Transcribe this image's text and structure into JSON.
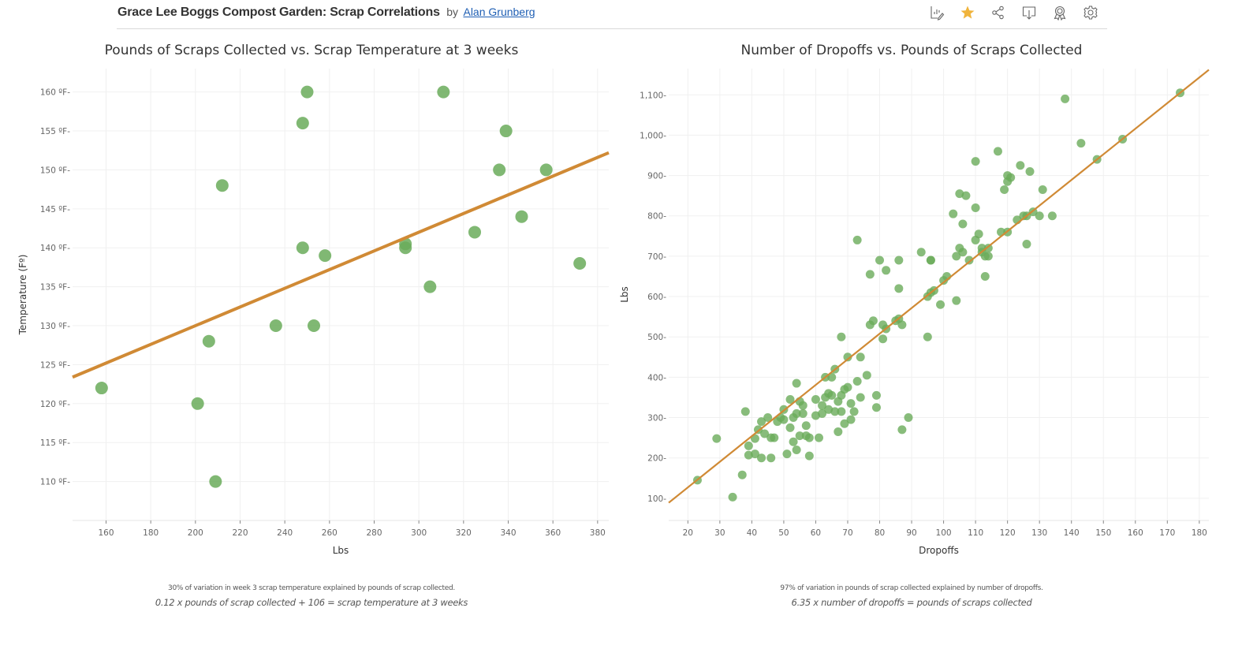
{
  "header": {
    "title": "Grace Lee Boggs Compost Garden: Scrap Correlations",
    "by": "by",
    "author": "Alan Grunberg",
    "toolbar": [
      {
        "name": "edit-icon",
        "label": "Edit"
      },
      {
        "name": "favorite-star-icon",
        "label": "Favorite"
      },
      {
        "name": "share-icon",
        "label": "Share"
      },
      {
        "name": "download-icon",
        "label": "Download"
      },
      {
        "name": "badge-icon",
        "label": "Featured"
      },
      {
        "name": "settings-gear-icon",
        "label": "Settings"
      }
    ]
  },
  "colors": {
    "point": "#6aab5a",
    "trendline": "#d08a35",
    "grid": "#f0f0f0",
    "star": "#f0b43c"
  },
  "chart_data": [
    {
      "type": "scatter",
      "title": "Pounds of Scraps Collected vs. Scrap Temperature at 3 weeks",
      "xlabel": "Lbs",
      "ylabel": "Temperature (Fº)",
      "xlim": [
        145,
        385
      ],
      "ylim": [
        105,
        163
      ],
      "xticks": [
        160,
        180,
        200,
        220,
        240,
        260,
        280,
        300,
        320,
        340,
        360,
        380
      ],
      "xtick_labels": [
        "160",
        "180",
        "200",
        "220",
        "240",
        "260",
        "280",
        "300",
        "320",
        "340",
        "360",
        "380"
      ],
      "yticks": [
        110,
        115,
        120,
        125,
        130,
        135,
        140,
        145,
        150,
        155,
        160
      ],
      "ytick_labels": [
        "110 ºF",
        "115 ºF",
        "120 ºF",
        "125 ºF",
        "130 ºF",
        "135 ºF",
        "140 ºF",
        "145 ºF",
        "150 ºF",
        "155 ºF",
        "160 ºF"
      ],
      "grid": true,
      "points": [
        {
          "x": 158,
          "y": 122
        },
        {
          "x": 201,
          "y": 120
        },
        {
          "x": 206,
          "y": 128
        },
        {
          "x": 209,
          "y": 110
        },
        {
          "x": 212,
          "y": 148
        },
        {
          "x": 236,
          "y": 130
        },
        {
          "x": 248,
          "y": 140
        },
        {
          "x": 248,
          "y": 156
        },
        {
          "x": 250,
          "y": 160
        },
        {
          "x": 253,
          "y": 130
        },
        {
          "x": 258,
          "y": 139
        },
        {
          "x": 294,
          "y": 140.5
        },
        {
          "x": 294,
          "y": 140
        },
        {
          "x": 305,
          "y": 135
        },
        {
          "x": 311,
          "y": 160
        },
        {
          "x": 325,
          "y": 142
        },
        {
          "x": 336,
          "y": 150
        },
        {
          "x": 339,
          "y": 155
        },
        {
          "x": 346,
          "y": 144
        },
        {
          "x": 357,
          "y": 150
        },
        {
          "x": 372,
          "y": 138
        }
      ],
      "trendline": {
        "slope": 0.12,
        "intercept": 106,
        "x_range": [
          145,
          385
        ]
      },
      "caption": "30% of variation in week 3 scrap temperature explained by pounds of scrap collected.",
      "equation": "0.12 x pounds of scrap collected + 106 = scrap temperature at 3 weeks"
    },
    {
      "type": "scatter",
      "title": "Number of Dropoffs vs. Pounds of Scraps Collected",
      "xlabel": "Dropoffs",
      "ylabel": "Lbs",
      "xlim": [
        14,
        183
      ],
      "ylim": [
        45,
        1165
      ],
      "xticks": [
        20,
        30,
        40,
        50,
        60,
        70,
        80,
        90,
        100,
        110,
        120,
        130,
        140,
        150,
        160,
        170,
        180
      ],
      "xtick_labels": [
        "20",
        "30",
        "40",
        "50",
        "60",
        "70",
        "80",
        "90",
        "100",
        "110",
        "120",
        "130",
        "140",
        "150",
        "160",
        "170",
        "180"
      ],
      "yticks": [
        100,
        200,
        300,
        400,
        500,
        600,
        700,
        800,
        900,
        1000,
        1100
      ],
      "ytick_labels": [
        "100",
        "200",
        "300",
        "400",
        "500",
        "600",
        "700",
        "800",
        "900",
        "1,000",
        "1,100"
      ],
      "grid": true,
      "points": [
        {
          "x": 23,
          "y": 145
        },
        {
          "x": 29,
          "y": 248
        },
        {
          "x": 34,
          "y": 103
        },
        {
          "x": 37,
          "y": 158
        },
        {
          "x": 38,
          "y": 315
        },
        {
          "x": 39,
          "y": 230
        },
        {
          "x": 39,
          "y": 207
        },
        {
          "x": 41,
          "y": 210
        },
        {
          "x": 41,
          "y": 248
        },
        {
          "x": 42,
          "y": 270
        },
        {
          "x": 43,
          "y": 290
        },
        {
          "x": 43,
          "y": 200
        },
        {
          "x": 44,
          "y": 260
        },
        {
          "x": 45,
          "y": 300
        },
        {
          "x": 46,
          "y": 200
        },
        {
          "x": 46,
          "y": 250
        },
        {
          "x": 47,
          "y": 250
        },
        {
          "x": 48,
          "y": 290
        },
        {
          "x": 49,
          "y": 300
        },
        {
          "x": 50,
          "y": 320
        },
        {
          "x": 50,
          "y": 295
        },
        {
          "x": 51,
          "y": 210
        },
        {
          "x": 52,
          "y": 345
        },
        {
          "x": 52,
          "y": 275
        },
        {
          "x": 53,
          "y": 240
        },
        {
          "x": 53,
          "y": 300
        },
        {
          "x": 54,
          "y": 310
        },
        {
          "x": 54,
          "y": 385
        },
        {
          "x": 54,
          "y": 220
        },
        {
          "x": 55,
          "y": 340
        },
        {
          "x": 55,
          "y": 255
        },
        {
          "x": 56,
          "y": 330
        },
        {
          "x": 56,
          "y": 310
        },
        {
          "x": 57,
          "y": 255
        },
        {
          "x": 57,
          "y": 280
        },
        {
          "x": 58,
          "y": 250
        },
        {
          "x": 58,
          "y": 205
        },
        {
          "x": 60,
          "y": 345
        },
        {
          "x": 60,
          "y": 305
        },
        {
          "x": 61,
          "y": 250
        },
        {
          "x": 62,
          "y": 330
        },
        {
          "x": 62,
          "y": 310
        },
        {
          "x": 63,
          "y": 400
        },
        {
          "x": 63,
          "y": 350
        },
        {
          "x": 64,
          "y": 320
        },
        {
          "x": 64,
          "y": 360
        },
        {
          "x": 65,
          "y": 400
        },
        {
          "x": 65,
          "y": 355
        },
        {
          "x": 66,
          "y": 315
        },
        {
          "x": 66,
          "y": 420
        },
        {
          "x": 67,
          "y": 340
        },
        {
          "x": 67,
          "y": 265
        },
        {
          "x": 68,
          "y": 355
        },
        {
          "x": 68,
          "y": 500
        },
        {
          "x": 68,
          "y": 315
        },
        {
          "x": 69,
          "y": 370
        },
        {
          "x": 69,
          "y": 285
        },
        {
          "x": 70,
          "y": 375
        },
        {
          "x": 70,
          "y": 450
        },
        {
          "x": 71,
          "y": 335
        },
        {
          "x": 71,
          "y": 295
        },
        {
          "x": 72,
          "y": 315
        },
        {
          "x": 73,
          "y": 390
        },
        {
          "x": 73,
          "y": 740
        },
        {
          "x": 74,
          "y": 350
        },
        {
          "x": 74,
          "y": 450
        },
        {
          "x": 76,
          "y": 405
        },
        {
          "x": 77,
          "y": 655
        },
        {
          "x": 77,
          "y": 530
        },
        {
          "x": 78,
          "y": 540
        },
        {
          "x": 79,
          "y": 355
        },
        {
          "x": 79,
          "y": 325
        },
        {
          "x": 80,
          "y": 690
        },
        {
          "x": 81,
          "y": 530
        },
        {
          "x": 81,
          "y": 495
        },
        {
          "x": 82,
          "y": 665
        },
        {
          "x": 82,
          "y": 520
        },
        {
          "x": 85,
          "y": 540
        },
        {
          "x": 86,
          "y": 545
        },
        {
          "x": 86,
          "y": 620
        },
        {
          "x": 86,
          "y": 690
        },
        {
          "x": 87,
          "y": 530
        },
        {
          "x": 87,
          "y": 270
        },
        {
          "x": 89,
          "y": 300
        },
        {
          "x": 93,
          "y": 710
        },
        {
          "x": 95,
          "y": 500
        },
        {
          "x": 95,
          "y": 600
        },
        {
          "x": 96,
          "y": 690
        },
        {
          "x": 96,
          "y": 690
        },
        {
          "x": 96,
          "y": 610
        },
        {
          "x": 97,
          "y": 615
        },
        {
          "x": 99,
          "y": 580
        },
        {
          "x": 100,
          "y": 640
        },
        {
          "x": 101,
          "y": 650
        },
        {
          "x": 103,
          "y": 805
        },
        {
          "x": 104,
          "y": 590
        },
        {
          "x": 104,
          "y": 700
        },
        {
          "x": 105,
          "y": 855
        },
        {
          "x": 105,
          "y": 720
        },
        {
          "x": 106,
          "y": 710
        },
        {
          "x": 106,
          "y": 780
        },
        {
          "x": 107,
          "y": 850
        },
        {
          "x": 108,
          "y": 690
        },
        {
          "x": 110,
          "y": 935
        },
        {
          "x": 110,
          "y": 740
        },
        {
          "x": 110,
          "y": 820
        },
        {
          "x": 111,
          "y": 755
        },
        {
          "x": 112,
          "y": 720
        },
        {
          "x": 112,
          "y": 710
        },
        {
          "x": 113,
          "y": 650
        },
        {
          "x": 113,
          "y": 700
        },
        {
          "x": 114,
          "y": 720
        },
        {
          "x": 114,
          "y": 700
        },
        {
          "x": 117,
          "y": 960
        },
        {
          "x": 118,
          "y": 760
        },
        {
          "x": 119,
          "y": 865
        },
        {
          "x": 120,
          "y": 900
        },
        {
          "x": 120,
          "y": 885
        },
        {
          "x": 120,
          "y": 760
        },
        {
          "x": 121,
          "y": 895
        },
        {
          "x": 123,
          "y": 790
        },
        {
          "x": 124,
          "y": 925
        },
        {
          "x": 125,
          "y": 800
        },
        {
          "x": 126,
          "y": 800
        },
        {
          "x": 126,
          "y": 730
        },
        {
          "x": 127,
          "y": 910
        },
        {
          "x": 128,
          "y": 810
        },
        {
          "x": 130,
          "y": 800
        },
        {
          "x": 131,
          "y": 865
        },
        {
          "x": 134,
          "y": 800
        },
        {
          "x": 138,
          "y": 1090
        },
        {
          "x": 143,
          "y": 980
        },
        {
          "x": 148,
          "y": 940
        },
        {
          "x": 156,
          "y": 990
        },
        {
          "x": 174,
          "y": 1105
        }
      ],
      "trendline": {
        "slope": 6.35,
        "intercept": 0,
        "x_range": [
          14,
          183
        ]
      },
      "caption": "97% of variation in pounds of scrap collected explained by number of dropoffs.",
      "equation": "6.35 x number of dropoffs = pounds of scraps collected"
    }
  ]
}
